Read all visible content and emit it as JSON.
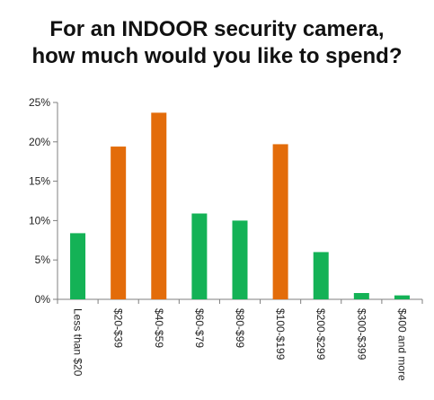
{
  "chart_data": {
    "type": "bar",
    "title_lines": [
      "For an INDOOR security camera,",
      "how much would you like to spend?"
    ],
    "categories": [
      "Less than $20",
      "$20-$39",
      "$40-$59",
      "$60-$79",
      "$80-$99",
      "$100-$199",
      "$200-$299",
      "$300-$399",
      "$400 and more"
    ],
    "values": [
      8.4,
      19.4,
      23.7,
      10.9,
      10.0,
      19.7,
      6.0,
      0.8,
      0.5
    ],
    "bar_colors": [
      "#14b256",
      "#e36c0a",
      "#e36c0a",
      "#14b256",
      "#14b256",
      "#e36c0a",
      "#14b256",
      "#14b256",
      "#14b256"
    ],
    "y_ticks": [
      "0%",
      "5%",
      "10%",
      "15%",
      "20%",
      "25%"
    ],
    "ylim": [
      0,
      25
    ],
    "y_unit": "%",
    "grid": false,
    "legend": "none"
  }
}
